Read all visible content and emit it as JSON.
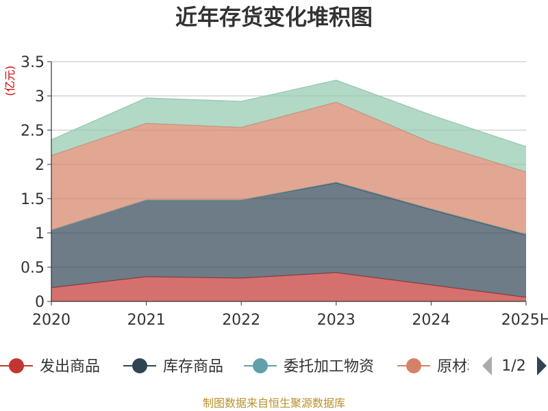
{
  "chart_data": {
    "type": "area",
    "stacked": true,
    "title": "近年存货变化堆积图",
    "unit_label": "(亿元)",
    "categories": [
      "2020",
      "2021",
      "2022",
      "2023",
      "2024",
      "2025H"
    ],
    "yticks": [
      "0",
      "0.5",
      "1",
      "1.5",
      "2",
      "2.5",
      "3",
      "3.5"
    ],
    "ylim": [
      0,
      3.5
    ],
    "grid": true,
    "series": [
      {
        "name": "发出商品",
        "color": "#c23531",
        "values": [
          0.2,
          0.36,
          0.34,
          0.42,
          0.24,
          0.06
        ]
      },
      {
        "name": "库存商品",
        "color": "#2f4554",
        "values": [
          0.84,
          1.12,
          1.14,
          1.31,
          1.1,
          0.91
        ]
      },
      {
        "name": "委托加工物资",
        "color": "#61a0a8",
        "values": [
          0.0,
          0.0,
          0.0,
          0.01,
          0.01,
          0.01
        ]
      },
      {
        "name": "原材料",
        "color": "#d48265",
        "values": [
          1.09,
          1.12,
          1.06,
          1.17,
          0.97,
          0.91
        ]
      },
      {
        "name": "",
        "color": "#91c7ae",
        "values": [
          0.23,
          0.37,
          0.38,
          0.32,
          0.4,
          0.37
        ]
      }
    ],
    "legend": {
      "position": "bottom",
      "items": [
        "发出商品",
        "库存商品",
        "委托加工物资",
        "原材料"
      ],
      "page": "1/2"
    }
  },
  "source": "制图数据来自恒生聚源数据库"
}
